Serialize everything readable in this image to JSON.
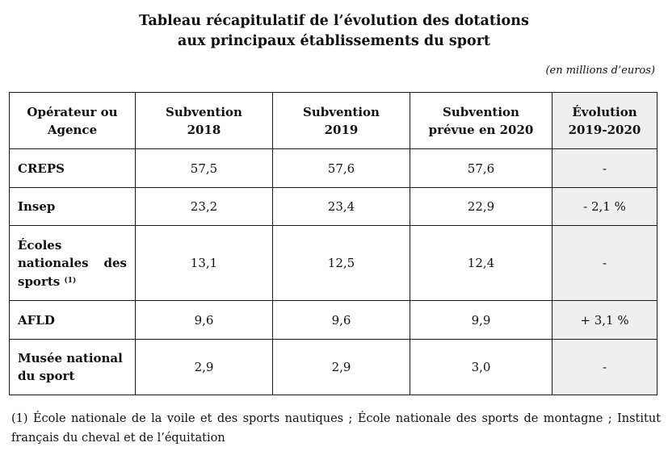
{
  "title": {
    "line1": "Tableau récapitulatif de l’évolution des dotations",
    "line2": "aux principaux établissements du sport"
  },
  "unit_note": "(en millions d’euros)",
  "table": {
    "headers": [
      {
        "line1": "Opérateur ou",
        "line2": "Agence"
      },
      {
        "line1": "Subvention",
        "line2": "2018"
      },
      {
        "line1": "Subvention",
        "line2": "2019"
      },
      {
        "line1": "Subvention",
        "line2": "prévue en 2020"
      },
      {
        "line1": "Évolution",
        "line2": "2019-2020"
      }
    ],
    "rows": [
      {
        "label": "CREPS",
        "v2018": "57,5",
        "v2019": "57,6",
        "v2020": "57,6",
        "evolution": "-"
      },
      {
        "label": "Insep",
        "v2018": "23,2",
        "v2019": "23,4",
        "v2020": "22,9",
        "evolution": "- 2,1 %"
      },
      {
        "label": "Écoles nationales des sports",
        "label_note": "(1)",
        "v2018": "13,1",
        "v2019": "12,5",
        "v2020": "12,4",
        "evolution": "-"
      },
      {
        "label": "AFLD",
        "v2018": "9,6",
        "v2019": "9,6",
        "v2020": "9,9",
        "evolution": "+ 3,1 %"
      },
      {
        "label": "Musée national du sport",
        "v2018": "2,9",
        "v2019": "2,9",
        "v2020": "3,0",
        "evolution": "-"
      }
    ]
  },
  "footnote": "(1) École nationale de la voile et des sports nautiques ; École nationale des sports de montagne ; Institut français du cheval et de l’équitation",
  "colors": {
    "highlight_column_background": "#efefef",
    "border": "#1a1a1a"
  }
}
